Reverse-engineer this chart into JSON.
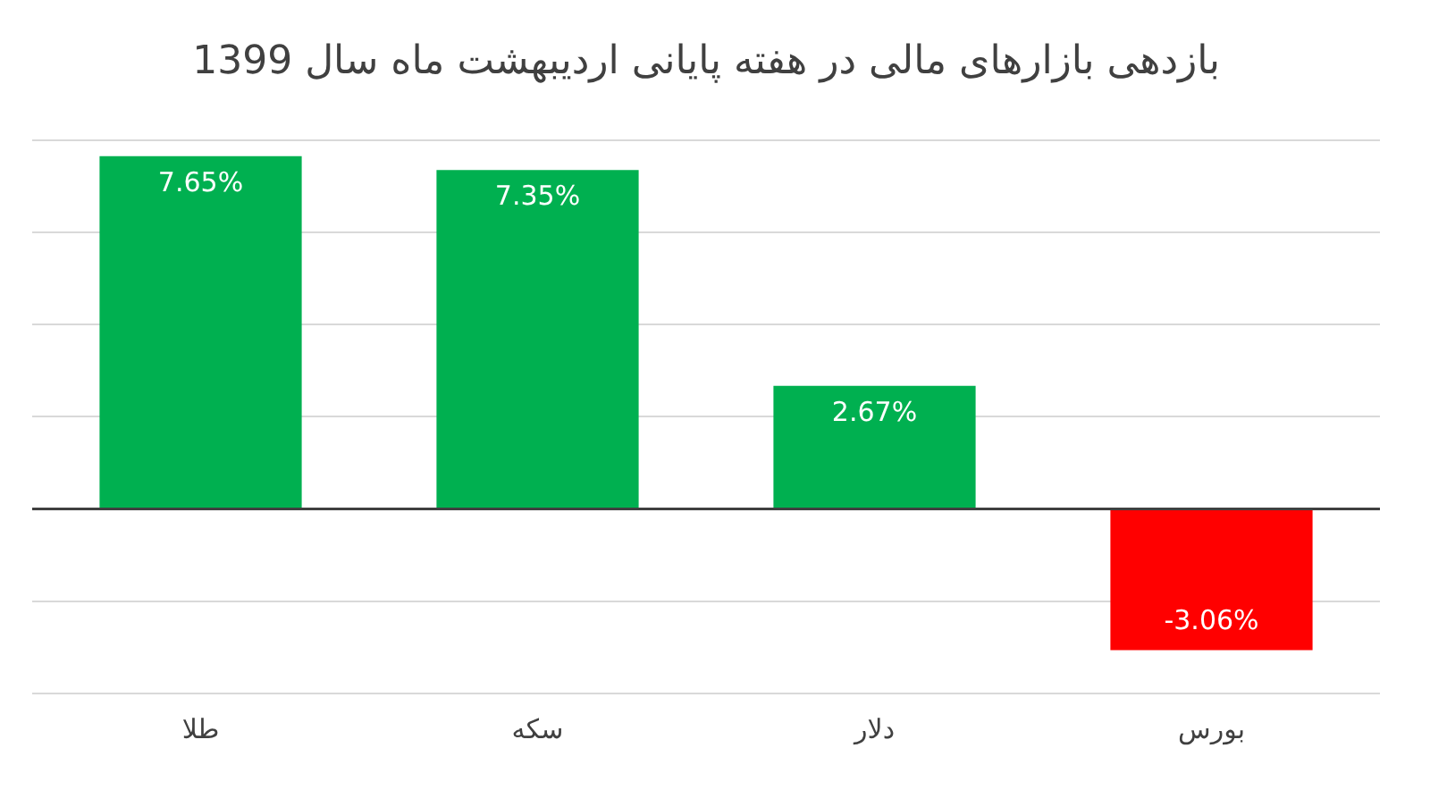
{
  "chart_data": {
    "type": "bar",
    "title": "بازدهی بازارهای مالی در هفته پایانی اردیبهشت ماه سال 1399",
    "categories": [
      "طلا",
      "سکه",
      "دلار",
      "بورس"
    ],
    "values": [
      7.65,
      7.35,
      2.67,
      -3.06
    ],
    "colors": [
      "#00b050",
      "#00b050",
      "#00b050",
      "#ff0000"
    ],
    "value_labels": [
      "7.65%",
      "7.35%",
      "2.67%",
      "-3.06%"
    ],
    "ylim": [
      -4,
      8
    ],
    "yticks": [
      {
        "value": -4,
        "label": null
      },
      {
        "value": -2,
        "label": null
      },
      {
        "value": 0,
        "label": null
      },
      {
        "value": 2,
        "label": null
      },
      {
        "value": 4,
        "label": null
      },
      {
        "value": 6,
        "label": null
      },
      {
        "value": 8,
        "label": null
      }
    ],
    "grid": "y",
    "tick_labels": "x",
    "legend": false
  }
}
